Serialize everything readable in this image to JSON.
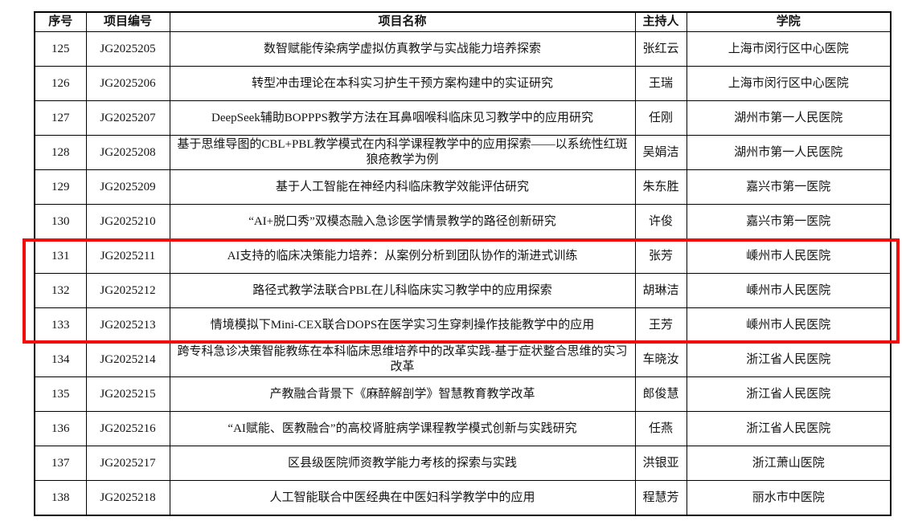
{
  "table": {
    "headers": [
      "序号",
      "项目编号",
      "项目名称",
      "主持人",
      "学院"
    ],
    "rows": [
      {
        "no": "125",
        "code": "JG2025205",
        "title": "数智赋能传染病学虚拟仿真教学与实战能力培养探索",
        "leader": "张红云",
        "college": "上海市闵行区中心医院"
      },
      {
        "no": "126",
        "code": "JG2025206",
        "title": "转型冲击理论在本科实习护生干预方案构建中的实证研究",
        "leader": "王瑞",
        "college": "上海市闵行区中心医院"
      },
      {
        "no": "127",
        "code": "JG2025207",
        "title": "DeepSeek辅助BOPPPS教学方法在耳鼻咽喉科临床见习教学中的应用研究",
        "leader": "任刚",
        "college": "湖州市第一人民医院"
      },
      {
        "no": "128",
        "code": "JG2025208",
        "title": "基于思维导图的CBL+PBL教学模式在内科学课程教学中的应用探索——以系统性红斑狼疮教学为例",
        "leader": "吴娟洁",
        "college": "湖州市第一人民医院"
      },
      {
        "no": "129",
        "code": "JG2025209",
        "title": "基于人工智能在神经内科临床教学效能评估研究",
        "leader": "朱东胜",
        "college": "嘉兴市第一医院"
      },
      {
        "no": "130",
        "code": "JG2025210",
        "title": "“AI+脱口秀”双模态融入急诊医学情景教学的路径创新研究",
        "leader": "许俊",
        "college": "嘉兴市第一医院"
      },
      {
        "no": "131",
        "code": "JG2025211",
        "title": "AI支持的临床决策能力培养：从案例分析到团队协作的渐进式训练",
        "leader": "张芳",
        "college": "嵊州市人民医院"
      },
      {
        "no": "132",
        "code": "JG2025212",
        "title": "路径式教学法联合PBL在儿科临床实习教学中的应用探索",
        "leader": "胡琳洁",
        "college": "嵊州市人民医院"
      },
      {
        "no": "133",
        "code": "JG2025213",
        "title": "情境模拟下Mini-CEX联合DOPS在医学实习生穿刺操作技能教学中的应用",
        "leader": "王芳",
        "college": "嵊州市人民医院"
      },
      {
        "no": "134",
        "code": "JG2025214",
        "title": "跨专科急诊决策智能教练在本科临床思维培养中的改革实践-基于症状整合思维的实习改革",
        "leader": "车晓汝",
        "college": "浙江省人民医院"
      },
      {
        "no": "135",
        "code": "JG2025215",
        "title": "产教融合背景下《麻醉解剖学》智慧教育教学改革",
        "leader": "郎俊慧",
        "college": "浙江省人民医院"
      },
      {
        "no": "136",
        "code": "JG2025216",
        "title": "“AI赋能、医教融合”的高校肾脏病学课程教学模式创新与实践研究",
        "leader": "任燕",
        "college": "浙江省人民医院"
      },
      {
        "no": "137",
        "code": "JG2025217",
        "title": "区县级医院师资教学能力考核的探索与实践",
        "leader": "洪银亚",
        "college": "浙江萧山医院"
      },
      {
        "no": "138",
        "code": "JG2025218",
        "title": "人工智能联合中医经典在中医妇科学教学中的应用",
        "leader": "程慧芳",
        "college": "丽水市中医院"
      }
    ]
  },
  "highlight": {
    "color": "#f20d0d",
    "first_row_no": "131",
    "last_row_no": "133"
  }
}
